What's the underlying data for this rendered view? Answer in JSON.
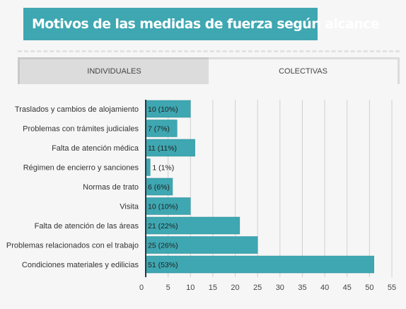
{
  "title": "Motivos de las medidas de fuerza según alcance",
  "tabs": [
    {
      "label": "INDIVIDUALES",
      "active": false
    },
    {
      "label": "COLECTIVAS",
      "active": true
    }
  ],
  "colors": {
    "title_bg": "#3ea7b1",
    "bar": "#3ea7b1",
    "bar_border": "#2b8e97",
    "axis": "#1f3b44"
  },
  "chart_data": {
    "type": "bar",
    "orientation": "horizontal",
    "categories": [
      "Traslados y cambios de alojamiento",
      "Problemas con trámites judiciales",
      "Falta de atención médica",
      "Régimen de encierro y sanciones",
      "Normas de trato",
      "Visita",
      "Falta de atención de las áreas",
      "Problemas relacionados con el trabajo",
      "Condiciones materiales y edilicias"
    ],
    "values": [
      10,
      7,
      11,
      1,
      6,
      10,
      21,
      25,
      51
    ],
    "data_labels": [
      "10 (10%)",
      "7 (7%)",
      "11 (11%)",
      "1 (1%)",
      "6 (6%)",
      "10 (10%)",
      "21 (22%)",
      "25 (26%)",
      "51 (53%)"
    ],
    "xlim": [
      0,
      55
    ],
    "xticks": [
      0,
      5,
      10,
      15,
      20,
      25,
      30,
      35,
      40,
      45,
      50,
      55
    ],
    "grid": true
  }
}
